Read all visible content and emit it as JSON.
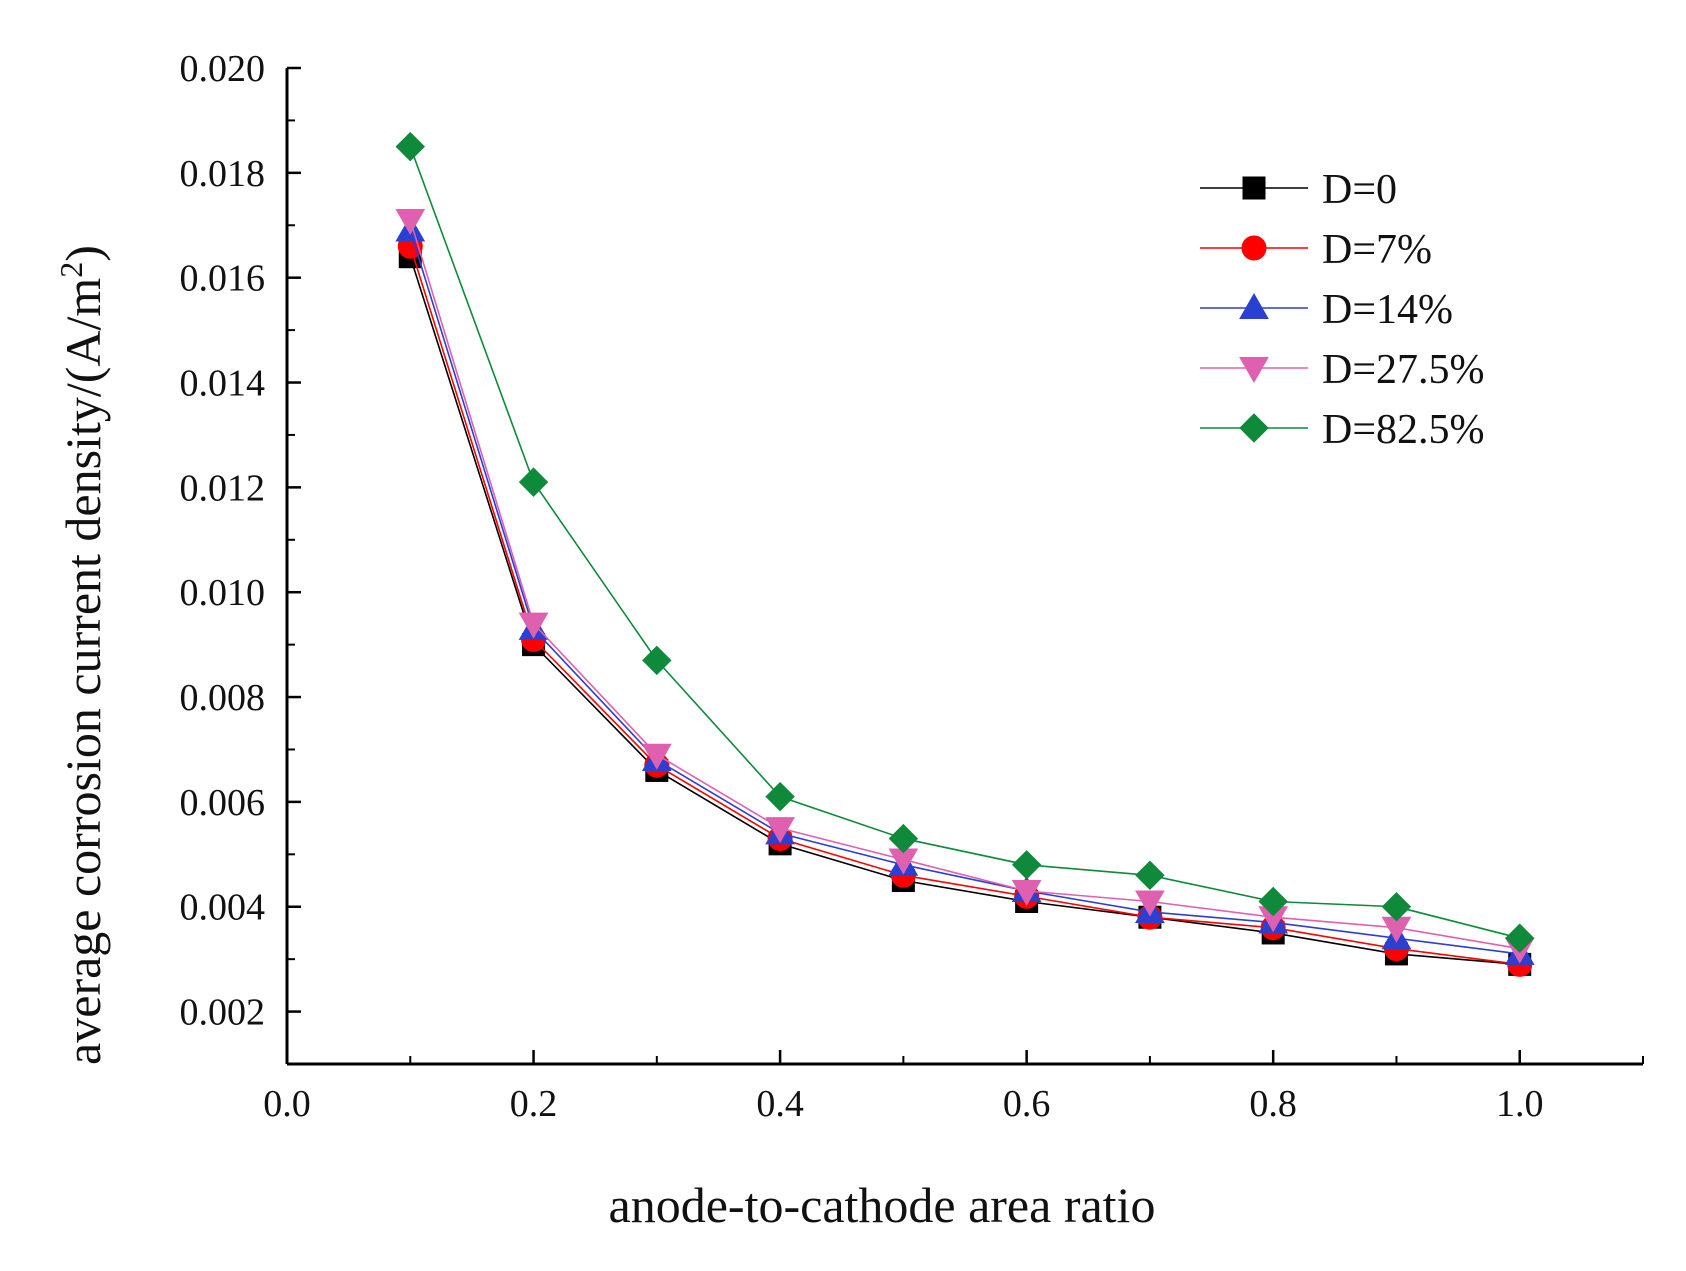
{
  "chart_data": {
    "type": "line",
    "title": "",
    "xlabel": "anode-to-cathode area ratio",
    "ylabel_main": "average corrosion current density/(A/m",
    "ylabel_sup": "2",
    "ylabel_close": ")",
    "xlim": [
      0.0,
      1.1
    ],
    "ylim": [
      0.001,
      0.02
    ],
    "x_ticks": [
      "0.0",
      "0.2",
      "0.4",
      "0.6",
      "0.8",
      "1.0"
    ],
    "y_ticks": [
      "0.002",
      "0.004",
      "0.006",
      "0.008",
      "0.010",
      "0.012",
      "0.014",
      "0.016",
      "0.018",
      "0.020"
    ],
    "grid": false,
    "legend_position": "top-right",
    "x": [
      0.1,
      0.2,
      0.3,
      0.4,
      0.5,
      0.6,
      0.7,
      0.8,
      0.9,
      1.0
    ],
    "series": [
      {
        "name": "D=0",
        "color": "#000000",
        "marker": "square",
        "values": [
          0.0164,
          0.009,
          0.0066,
          0.0052,
          0.0045,
          0.0041,
          0.0038,
          0.0035,
          0.0031,
          0.0029
        ]
      },
      {
        "name": "D=7%",
        "color": "#ff0000",
        "marker": "circle",
        "values": [
          0.0166,
          0.0091,
          0.0067,
          0.0053,
          0.0046,
          0.0042,
          0.0038,
          0.0036,
          0.0032,
          0.0029
        ]
      },
      {
        "name": "D=14%",
        "color": "#2b3fd1",
        "marker": "triangle-up",
        "values": [
          0.0169,
          0.0093,
          0.0068,
          0.0054,
          0.0048,
          0.0043,
          0.0039,
          0.0037,
          0.0034,
          0.0031
        ]
      },
      {
        "name": "D=27.5%",
        "color": "#e060b0",
        "marker": "triangle-down",
        "values": [
          0.0171,
          0.0094,
          0.0069,
          0.0055,
          0.0049,
          0.0043,
          0.0041,
          0.0038,
          0.0036,
          0.0032
        ]
      },
      {
        "name": "D=82.5%",
        "color": "#0e8a3a",
        "marker": "diamond",
        "values": [
          0.0185,
          0.0121,
          0.0087,
          0.0061,
          0.0053,
          0.0048,
          0.0046,
          0.0041,
          0.004,
          0.0034
        ]
      }
    ]
  }
}
